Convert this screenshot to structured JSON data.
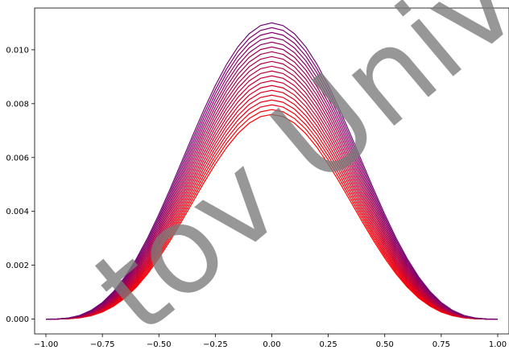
{
  "chart_data": {
    "type": "line",
    "title": "",
    "xlabel": "",
    "ylabel": "",
    "xlim": [
      -1.05,
      1.05
    ],
    "ylim": [
      -0.00055,
      0.01155
    ],
    "grid": false,
    "legend": "none",
    "x_ticks": [
      -1.0,
      -0.75,
      -0.5,
      -0.25,
      0.0,
      0.25,
      0.5,
      0.75,
      1.0
    ],
    "x_tick_labels": [
      "−1.00",
      "−0.75",
      "−0.50",
      "−0.25",
      "0.00",
      "0.25",
      "0.50",
      "0.75",
      "1.00"
    ],
    "y_ticks": [
      0.0,
      0.002,
      0.004,
      0.006,
      0.008,
      0.01
    ],
    "y_tick_labels": [
      "0.000",
      "0.002",
      "0.004",
      "0.006",
      "0.008",
      "0.010"
    ],
    "series_family": {
      "count": 20,
      "x_range": [
        -0.95,
        0.95
      ],
      "sample_count": 39,
      "peak_first": 0.0076,
      "peak_last": 0.011,
      "shape_exponent_first": 1.75,
      "shape_exponent_last": 1.5,
      "color_first": "#ff0000",
      "color_last": "#1a00c8",
      "peak_color_last": "#a01040"
    }
  },
  "watermark": {
    "text": "tov Univers",
    "color": "#7a7a7a"
  }
}
